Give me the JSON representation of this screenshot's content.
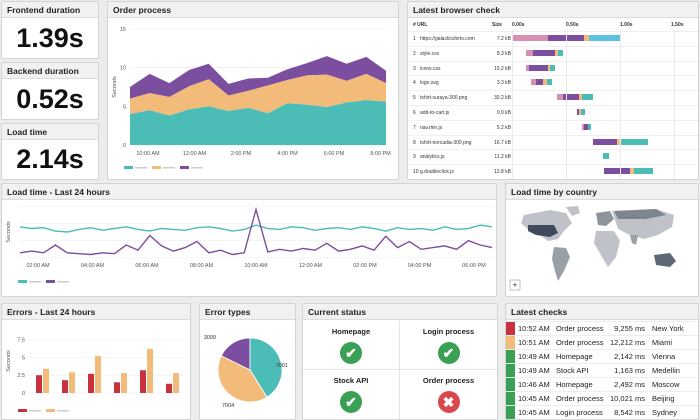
{
  "kpis": [
    {
      "title": "Frontend duration",
      "value": "1.39s"
    },
    {
      "title": "Backend duration",
      "value": "0.52s"
    },
    {
      "title": "Load time",
      "value": "2.14s"
    }
  ],
  "colors": {
    "teal": "#4cbcb7",
    "orange": "#f2bb7a",
    "purple": "#7b4ea0",
    "red": "#c8323f",
    "green": "#3aa053",
    "darkred": "#d9474c"
  },
  "order_process": {
    "title": "Order process",
    "ylabel": "Seconds",
    "y_ticks": [
      "15",
      "10",
      "5",
      "0"
    ],
    "x_ticks": [
      "10:00 AM",
      "12:00 AM",
      "2:00 PM",
      "4:00 PM",
      "6:00 PM",
      "8:00 PM"
    ],
    "chart_data": {
      "type": "area",
      "ylim": [
        0,
        15
      ],
      "x_count": 14,
      "series": [
        {
          "values": [
            4,
            4.5,
            3.8,
            4.6,
            5,
            4.4,
            4.8,
            4.1,
            5.4,
            5.2,
            4.9,
            5.5,
            5.8,
            5.6
          ]
        },
        {
          "values": [
            2,
            2.2,
            2.4,
            3.0,
            3.5,
            2.0,
            2.2,
            3.6,
            3.0,
            3.8,
            4.2,
            2.8,
            3.4,
            2.4
          ]
        },
        {
          "values": [
            1.5,
            2.5,
            1.8,
            2.1,
            2.0,
            1.5,
            1.6,
            1.0,
            1.4,
            1.6,
            2.4,
            2.2,
            2.2,
            1.6
          ]
        }
      ]
    }
  },
  "browser_check": {
    "title": "Latest browser check",
    "headers": {
      "url": "# URL",
      "size": "Size",
      "t0": "0.00s",
      "t1": "0.50s",
      "t2": "1.00s",
      "t3": "1.50s"
    },
    "rows": [
      {
        "n": "1",
        "url": "https://galacticshirts.com",
        "size": "7.2 kB"
      },
      {
        "n": "2",
        "url": "style.css",
        "size": "8.3 kB"
      },
      {
        "n": "3",
        "url": "icons.css",
        "size": "10.2 kB"
      },
      {
        "n": "4",
        "url": "logo.svg",
        "size": "3.3 kB"
      },
      {
        "n": "5",
        "url": "tshirt-suraya-300.png",
        "size": "30.2 kB"
      },
      {
        "n": "6",
        "url": "add-to-cart.js",
        "size": "0.9 kB"
      },
      {
        "n": "7",
        "url": "nav.min.js",
        "size": "5.2 kB"
      },
      {
        "n": "8",
        "url": "tshirt-norcadia-300.png",
        "size": "16.7 kB"
      },
      {
        "n": "9",
        "url": "analytics.js",
        "size": "11.2 kB"
      },
      {
        "n": "10",
        "url": "g.doubleclick.js",
        "size": "12.8 kB"
      }
    ]
  },
  "load_24h": {
    "title": "Load time - Last 24 hours",
    "ylabel": "Seconds",
    "x_ticks": [
      "02:00 AM",
      "04:00 AM",
      "06:00 AM",
      "08:00 AM",
      "10:00 AM",
      "12:00 AM",
      "02:00 PM",
      "04:00 PM",
      "06:00 PM"
    ],
    "chart_data": {
      "type": "line",
      "ylim": [
        0,
        6
      ],
      "series": [
        {
          "values": [
            3.6,
            3.4,
            3.5,
            3.1,
            3.0,
            3.3,
            3.5,
            3.2,
            3.4,
            3.6,
            3.3,
            3.1,
            3.4,
            3.3,
            3.2,
            3.5,
            3.6,
            3.4,
            3.1,
            3.3,
            3.8,
            3.4,
            3.3,
            3.6,
            3.5,
            3.2,
            3.4,
            3.5,
            3.3,
            3.6,
            3.4,
            3.1,
            3.5,
            3.3,
            3.4,
            3.2,
            3.6,
            3.3,
            3.4,
            3.8,
            3.6
          ]
        },
        {
          "values": [
            0.6,
            0.8,
            0.6,
            1.5,
            0.6,
            0.5,
            0.4,
            0.6,
            0.5,
            1.5,
            0.9,
            2.6,
            1.4,
            0.8,
            1.2,
            1.9,
            0.6,
            0.9,
            0.4,
            0.6,
            5.6,
            0.7,
            1.0,
            0.8,
            1.1,
            0.9,
            1.7,
            0.8,
            1.0,
            1.4,
            0.9,
            2.5,
            1.2,
            1.9,
            1.0,
            1.2,
            1.4,
            1.0,
            2.0,
            1.5,
            1.2
          ]
        }
      ]
    }
  },
  "country": {
    "title": "Load time by country",
    "zoom": "+"
  },
  "errors": {
    "title": "Errors - Last 24 hours",
    "ylabel": "Seconds",
    "y_ticks": [
      "7.5",
      "5",
      "2.5",
      "0"
    ],
    "chart_data": {
      "type": "bar",
      "ylim": [
        0,
        9
      ],
      "categories": [
        "1",
        "2",
        "3",
        "4",
        "5",
        "6"
      ],
      "series": [
        {
          "values": [
            2.5,
            1.8,
            2.7,
            1.5,
            3.2,
            1.3
          ]
        },
        {
          "values": [
            3.4,
            2.9,
            5.2,
            2.8,
            6.2,
            2.8
          ]
        }
      ]
    }
  },
  "error_types": {
    "title": "Error types",
    "chart_data": {
      "type": "pie",
      "values": [
        3009,
        7001,
        7004
      ],
      "labels": [
        "3009",
        "7001",
        "7004"
      ]
    }
  },
  "current_status": {
    "title": "Current status",
    "items": [
      {
        "label": "Homepage",
        "state": "ok"
      },
      {
        "label": "Login process",
        "state": "ok"
      },
      {
        "label": "Stock API",
        "state": "ok"
      },
      {
        "label": "Order process",
        "state": "fail"
      }
    ]
  },
  "latest_checks": {
    "title": "Latest checks",
    "rows": [
      {
        "time": "10:52 AM",
        "name": "Order process",
        "ms": "9,255 ms",
        "city": "New York",
        "status": "red"
      },
      {
        "time": "10:51 AM",
        "name": "Order process",
        "ms": "12,212 ms",
        "city": "Miami",
        "status": "orange"
      },
      {
        "time": "10:49 AM",
        "name": "Homepage",
        "ms": "2,142 ms",
        "city": "Vienna",
        "status": "green"
      },
      {
        "time": "10:49 AM",
        "name": "Stock API",
        "ms": "1,163 ms",
        "city": "Medellin",
        "status": "green"
      },
      {
        "time": "10:46 AM",
        "name": "Homepage",
        "ms": "2,492 ms",
        "city": "Moscow",
        "status": "green"
      },
      {
        "time": "10:45 AM",
        "name": "Order process",
        "ms": "10,021 ms",
        "city": "Beijing",
        "status": "green"
      },
      {
        "time": "10:45 AM",
        "name": "Login process",
        "ms": "8,542 ms",
        "city": "Sydney",
        "status": "green"
      }
    ]
  }
}
